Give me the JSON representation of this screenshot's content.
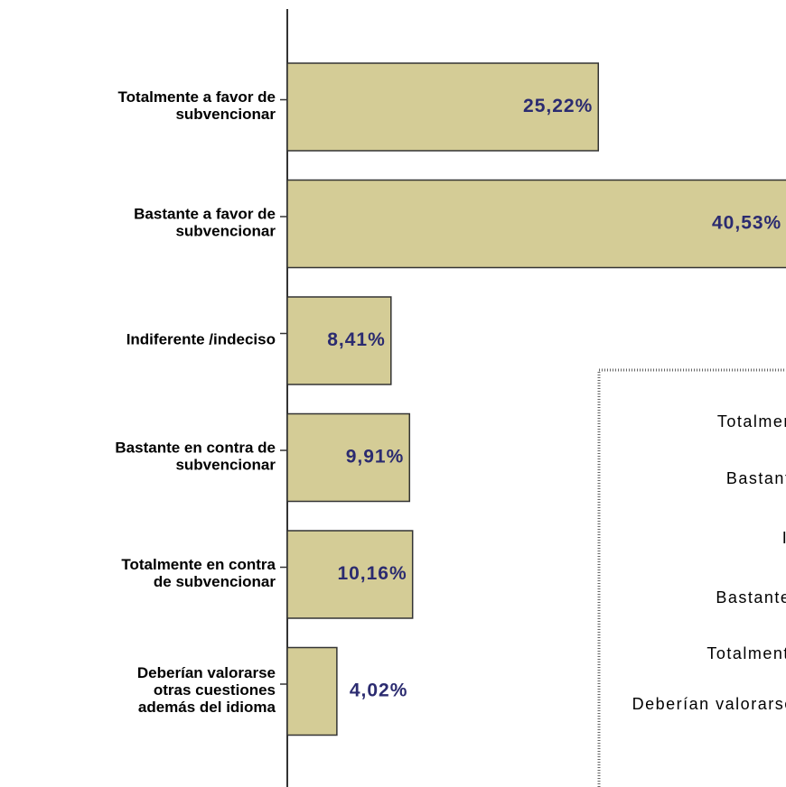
{
  "chart_data": {
    "type": "barh",
    "categories": [
      "Totalmente a favor de\nsubvencionar",
      "Bastante a favor de\nsubvencionar",
      "Indiferente /indeciso",
      "Bastante en contra de\nsubvencionar",
      "Totalmente en contra\nde subvencionar",
      "Deberían valorarse\notras cuestiones\nademás del idioma"
    ],
    "values": [
      25.22,
      40.53,
      8.41,
      9.91,
      10.16,
      4.02
    ],
    "value_labels": [
      "25,22%",
      "40,53%",
      "8,41%",
      "9,91%",
      "10,16%",
      "4,02%"
    ],
    "color": "#d4cc96",
    "xlim": [
      0,
      40
    ],
    "legend": true
  }
}
